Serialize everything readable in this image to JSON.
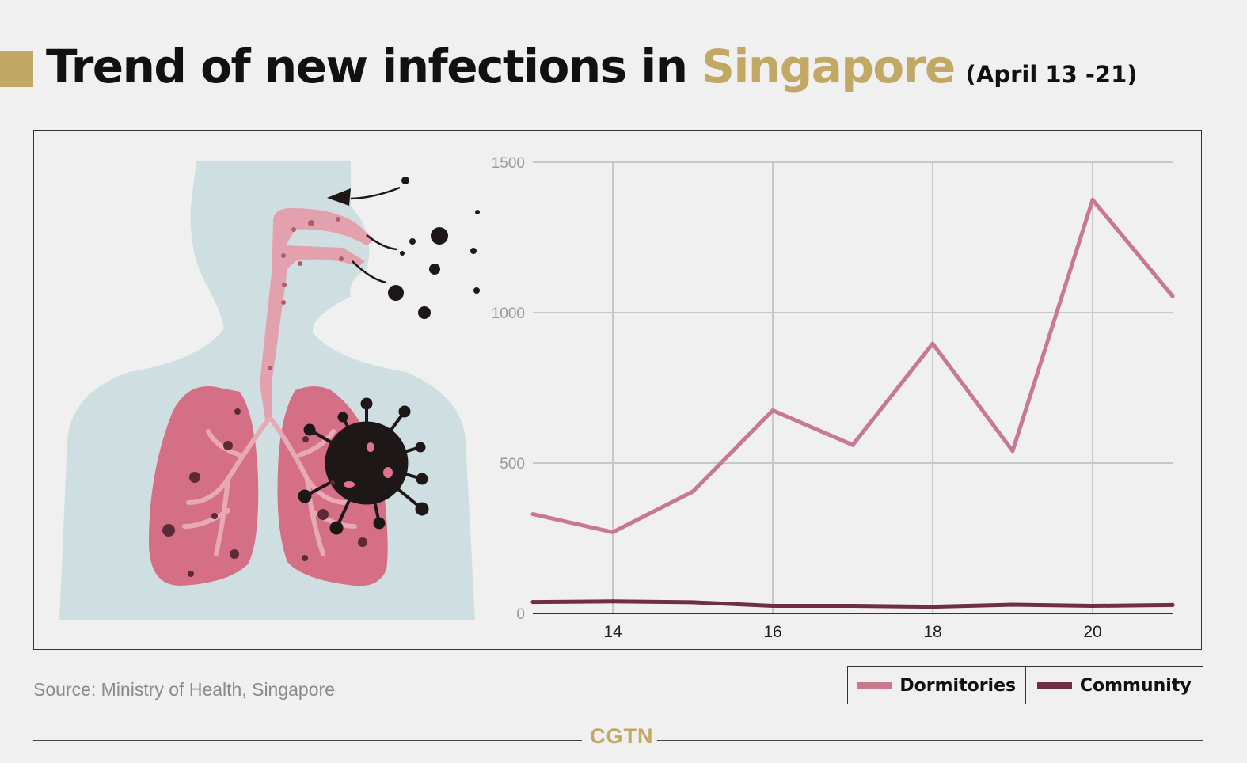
{
  "title": {
    "main": "Trend of new infections in ",
    "accent": "Singapore",
    "sub": "(April 13 -21)"
  },
  "colors": {
    "accent": "#c2a865",
    "dormitories": "#c8798e",
    "community": "#6e2f40",
    "grid": "#c8c8c8",
    "tick_text": "#9a9a9a"
  },
  "chart_data": {
    "type": "line",
    "x": [
      13,
      14,
      15,
      16,
      17,
      18,
      19,
      20,
      21
    ],
    "xticks": [
      14,
      16,
      18,
      20
    ],
    "xlim": [
      13,
      21
    ],
    "yticks": [
      0,
      500,
      1000,
      1500
    ],
    "ylim": [
      0,
      1500
    ],
    "xlabel": "",
    "ylabel": "",
    "grid": true,
    "legend_position": "bottom-right",
    "series": [
      {
        "name": "Dormitories",
        "values": [
          330,
          270,
          405,
          675,
          560,
          897,
          540,
          1375,
          1055
        ]
      },
      {
        "name": "Community",
        "values": [
          38,
          40,
          37,
          25,
          25,
          22,
          29,
          25,
          28
        ]
      }
    ]
  },
  "legend": {
    "dormitories": "Dormitories",
    "community": "Community"
  },
  "source": "Source: Ministry of Health, Singapore",
  "footer": {
    "logo": "CGTN"
  },
  "icons": {
    "illustration": "respiratory-virus-illustration"
  }
}
